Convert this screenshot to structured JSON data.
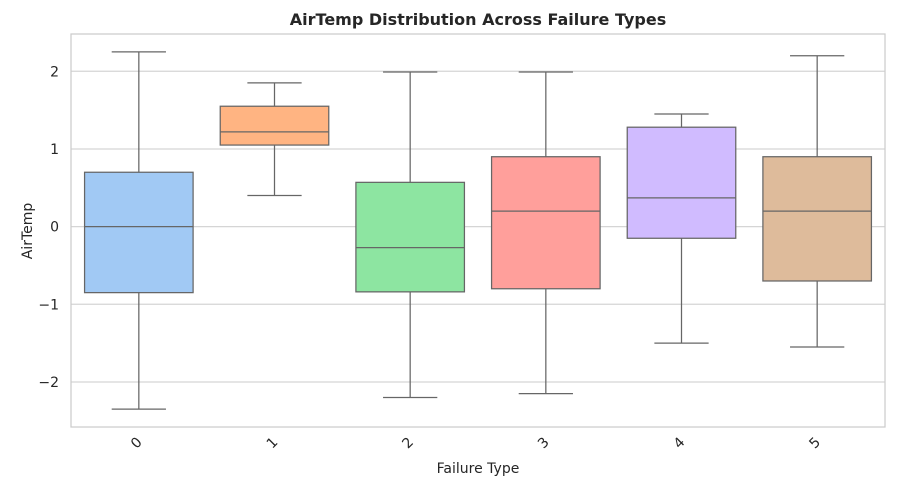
{
  "chart_data": {
    "type": "box",
    "title": "AirTemp Distribution Across Failure Types",
    "xlabel": "Failure Type",
    "ylabel": "AirTemp",
    "categories": [
      "0",
      "1",
      "2",
      "3",
      "4",
      "5"
    ],
    "ylim": [
      -2.58,
      2.48
    ],
    "yticks": [
      2,
      1,
      0,
      -1,
      -2
    ],
    "ytick_labels": [
      "2",
      "1",
      "0",
      "−1",
      "−2"
    ],
    "grid": true,
    "boxes": [
      {
        "category": "0",
        "whisker_low": -2.35,
        "q1": -0.85,
        "median": 0.0,
        "q3": 0.7,
        "whisker_high": 2.25,
        "color": "#a1c9f4"
      },
      {
        "category": "1",
        "whisker_low": 0.4,
        "q1": 1.05,
        "median": 1.22,
        "q3": 1.55,
        "whisker_high": 1.85,
        "color": "#ffb482"
      },
      {
        "category": "2",
        "whisker_low": -2.2,
        "q1": -0.84,
        "median": -0.27,
        "q3": 0.57,
        "whisker_high": 1.99,
        "color": "#8de5a1"
      },
      {
        "category": "3",
        "whisker_low": -2.15,
        "q1": -0.8,
        "median": 0.2,
        "q3": 0.9,
        "whisker_high": 1.99,
        "color": "#ff9f9b"
      },
      {
        "category": "4",
        "whisker_low": -1.5,
        "q1": -0.15,
        "median": 0.37,
        "q3": 1.28,
        "whisker_high": 1.45,
        "color": "#d0bbff"
      },
      {
        "category": "5",
        "whisker_low": -1.55,
        "q1": -0.7,
        "median": 0.2,
        "q3": 0.9,
        "whisker_high": 2.2,
        "color": "#debb9b"
      }
    ]
  }
}
